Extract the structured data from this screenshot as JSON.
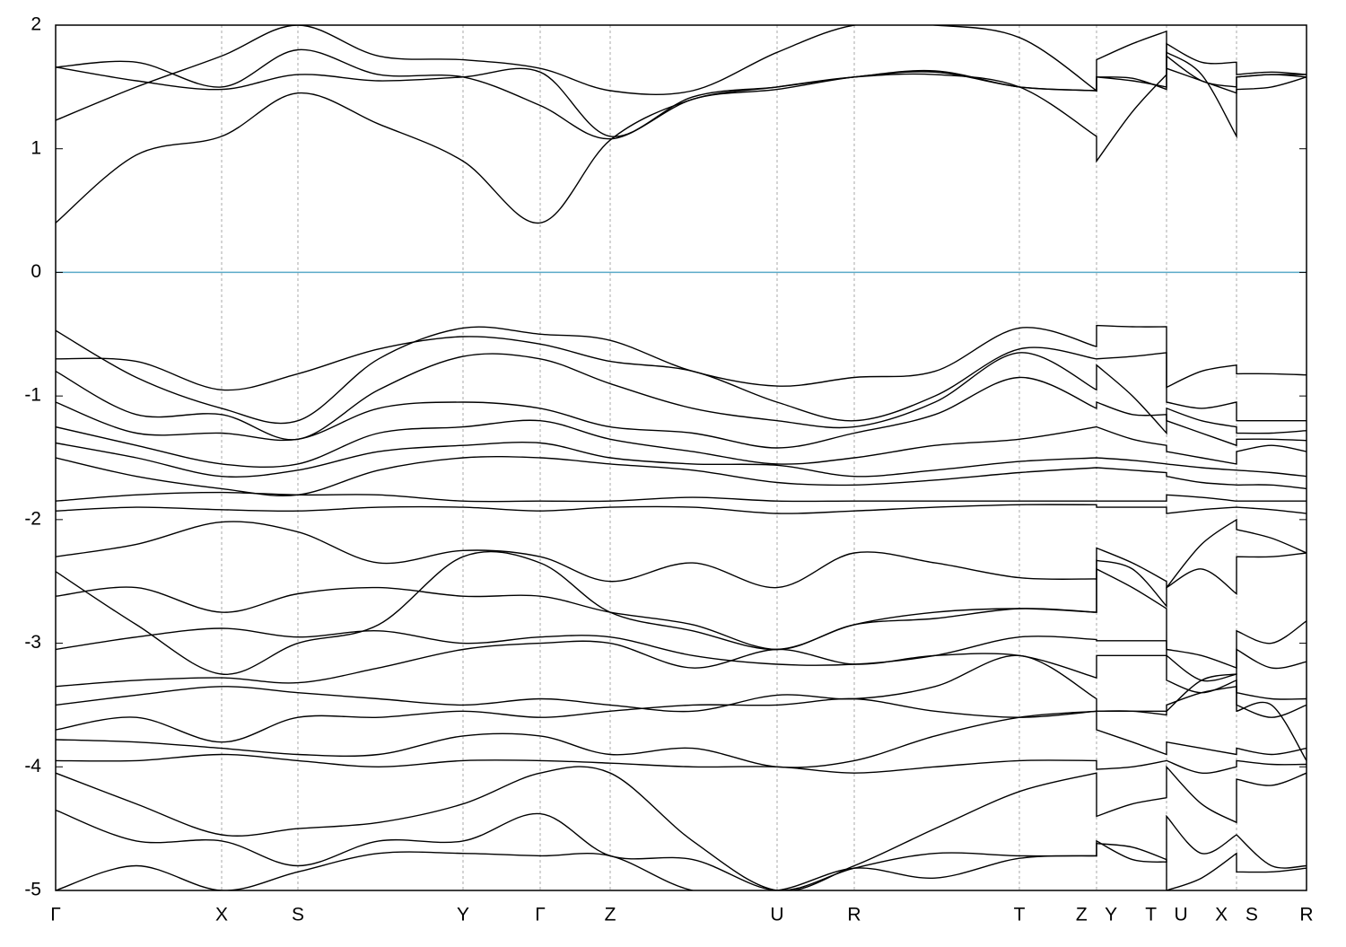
{
  "chart_data": {
    "type": "line",
    "x": [
      0,
      0.9,
      1.85,
      2.7,
      3.6,
      4.54,
      5.4,
      6.18,
      7.1,
      8.04,
      8.9,
      9.8,
      10.74,
      11.6,
      11.6,
      12.0,
      12.38,
      12.38,
      12.77,
      13.16,
      13.16,
      13.55,
      13.94
    ],
    "xlim": [
      0,
      13.94
    ],
    "xticks": [
      {
        "value": 0,
        "label": "Γ"
      },
      {
        "value": 1.85,
        "label": "X"
      },
      {
        "value": 2.7,
        "label": "S"
      },
      {
        "value": 4.54,
        "label": "Y"
      },
      {
        "value": 5.4,
        "label": "Γ"
      },
      {
        "value": 6.18,
        "label": "Z"
      },
      {
        "value": 8.04,
        "label": "U"
      },
      {
        "value": 8.9,
        "label": "R"
      },
      {
        "value": 10.74,
        "label": "T"
      },
      {
        "value": 11.6,
        "label": "Z Y"
      },
      {
        "value": 12.38,
        "label": "T U"
      },
      {
        "value": 13.16,
        "label": "X S"
      },
      {
        "value": 13.94,
        "label": "R"
      }
    ],
    "ylim": [
      -5,
      2
    ],
    "yticks": [
      -5,
      -4,
      -3,
      -2,
      -1,
      0,
      1,
      2
    ],
    "xgrid": true,
    "line_color": "#000000",
    "hline": {
      "value": 0,
      "color": "#5aaac8"
    },
    "series": [
      {
        "values": [
          0.4,
          0.95,
          1.1,
          1.45,
          1.2,
          0.9,
          0.4,
          1.07,
          1.4,
          1.5,
          1.58,
          1.6,
          1.5,
          1.1,
          0.9,
          1.3,
          1.6,
          1.78,
          1.6,
          1.1,
          1.48,
          1.5,
          1.58
        ]
      },
      {
        "values": [
          1.23,
          1.5,
          1.75,
          2.0,
          1.75,
          1.72,
          1.65,
          1.47,
          1.47,
          1.78,
          2.0,
          2.0,
          1.9,
          1.47,
          1.72,
          1.85,
          1.95,
          1.65,
          1.55,
          1.45,
          1.58,
          1.6,
          1.6
        ]
      },
      {
        "values": [
          1.66,
          1.55,
          1.48,
          1.6,
          1.55,
          1.58,
          1.62,
          1.1,
          1.42,
          1.5,
          1.58,
          1.63,
          1.5,
          1.47,
          1.58,
          1.57,
          1.48,
          1.85,
          1.7,
          1.7,
          1.6,
          1.62,
          1.6
        ]
      },
      {
        "values": [
          1.66,
          1.7,
          1.5,
          1.8,
          1.6,
          1.58,
          1.35,
          1.08,
          1.4,
          1.48,
          1.58,
          1.62,
          1.5,
          1.47,
          1.58,
          1.55,
          1.5,
          1.75,
          1.55,
          1.5,
          1.58,
          1.6,
          1.58
        ]
      },
      {
        "values": [
          -0.47,
          -0.85,
          -1.1,
          -1.2,
          -0.7,
          -0.45,
          -0.5,
          -0.55,
          -0.8,
          -0.92,
          -0.85,
          -0.8,
          -0.45,
          -0.6,
          -0.43,
          -0.44,
          -0.44,
          -0.93,
          -0.8,
          -0.75,
          -0.82,
          -0.82,
          -0.83
        ]
      },
      {
        "values": [
          -0.7,
          -0.72,
          -0.95,
          -0.82,
          -0.62,
          -0.52,
          -0.58,
          -0.72,
          -0.8,
          -1.05,
          -1.2,
          -1.0,
          -0.62,
          -0.7,
          -0.7,
          -0.68,
          -0.65,
          -1.05,
          -1.1,
          -1.05,
          -1.2,
          -1.2,
          -1.2
        ]
      },
      {
        "values": [
          -0.8,
          -1.15,
          -1.15,
          -1.35,
          -0.95,
          -0.68,
          -0.7,
          -0.9,
          -1.1,
          -1.2,
          -1.25,
          -1.05,
          -0.65,
          -0.95,
          -0.75,
          -1.0,
          -1.3,
          -1.1,
          -1.2,
          -1.25,
          -1.3,
          -1.3,
          -1.28
        ]
      },
      {
        "values": [
          -1.05,
          -1.3,
          -1.3,
          -1.35,
          -1.1,
          -1.05,
          -1.1,
          -1.25,
          -1.3,
          -1.42,
          -1.3,
          -1.15,
          -0.85,
          -1.1,
          -1.05,
          -1.15,
          -1.15,
          -1.2,
          -1.3,
          -1.4,
          -1.35,
          -1.35,
          -1.36
        ]
      },
      {
        "values": [
          -1.25,
          -1.4,
          -1.55,
          -1.55,
          -1.3,
          -1.25,
          -1.2,
          -1.35,
          -1.45,
          -1.55,
          -1.5,
          -1.4,
          -1.35,
          -1.25,
          -1.25,
          -1.35,
          -1.4,
          -1.45,
          -1.5,
          -1.55,
          -1.45,
          -1.4,
          -1.45
        ]
      },
      {
        "values": [
          -1.38,
          -1.5,
          -1.65,
          -1.6,
          -1.45,
          -1.4,
          -1.38,
          -1.5,
          -1.55,
          -1.56,
          -1.65,
          -1.6,
          -1.53,
          -1.5,
          -1.5,
          -1.52,
          -1.55,
          -1.55,
          -1.58,
          -1.6,
          -1.6,
          -1.62,
          -1.65
        ]
      },
      {
        "values": [
          -1.5,
          -1.65,
          -1.75,
          -1.8,
          -1.6,
          -1.5,
          -1.5,
          -1.55,
          -1.6,
          -1.7,
          -1.72,
          -1.68,
          -1.62,
          -1.58,
          -1.58,
          -1.6,
          -1.62,
          -1.65,
          -1.7,
          -1.72,
          -1.72,
          -1.72,
          -1.75
        ]
      },
      {
        "values": [
          -1.85,
          -1.8,
          -1.78,
          -1.8,
          -1.8,
          -1.85,
          -1.85,
          -1.85,
          -1.82,
          -1.85,
          -1.85,
          -1.85,
          -1.85,
          -1.85,
          -1.85,
          -1.85,
          -1.85,
          -1.8,
          -1.82,
          -1.85,
          -1.85,
          -1.85,
          -1.85
        ]
      },
      {
        "values": [
          -1.93,
          -1.9,
          -1.92,
          -1.93,
          -1.9,
          -1.9,
          -1.93,
          -1.9,
          -1.9,
          -1.95,
          -1.93,
          -1.9,
          -1.88,
          -1.88,
          -1.9,
          -1.9,
          -1.9,
          -1.95,
          -1.92,
          -1.9,
          -1.9,
          -1.92,
          -1.95
        ]
      },
      {
        "values": [
          -2.3,
          -2.2,
          -2.02,
          -2.1,
          -2.35,
          -2.25,
          -2.3,
          -2.5,
          -2.35,
          -2.55,
          -2.27,
          -2.35,
          -2.47,
          -2.48,
          -2.23,
          -2.35,
          -2.5,
          -2.55,
          -2.2,
          -2.0,
          -2.08,
          -2.15,
          -2.27
        ]
      },
      {
        "values": [
          -2.62,
          -2.55,
          -2.75,
          -2.6,
          -2.55,
          -2.62,
          -2.62,
          -2.75,
          -2.85,
          -3.05,
          -2.85,
          -2.8,
          -2.72,
          -2.75,
          -2.33,
          -2.4,
          -2.7,
          -2.55,
          -2.4,
          -2.6,
          -2.3,
          -2.3,
          -2.27
        ]
      },
      {
        "values": [
          -2.42,
          -2.85,
          -3.25,
          -3.0,
          -2.85,
          -2.3,
          -2.35,
          -2.75,
          -2.9,
          -3.05,
          -2.85,
          -2.75,
          -2.72,
          -2.75,
          -2.4,
          -2.55,
          -2.72,
          -3.05,
          -3.1,
          -3.2,
          -2.9,
          -3.0,
          -2.82
        ]
      },
      {
        "values": [
          -3.05,
          -2.95,
          -2.88,
          -2.95,
          -2.9,
          -3.0,
          -2.95,
          -2.95,
          -3.1,
          -3.17,
          -3.17,
          -3.1,
          -2.95,
          -2.97,
          -2.98,
          -2.98,
          -2.98,
          -3.1,
          -3.3,
          -3.25,
          -3.05,
          -3.2,
          -3.15
        ]
      },
      {
        "values": [
          -3.35,
          -3.3,
          -3.28,
          -3.32,
          -3.2,
          -3.05,
          -3.0,
          -3.0,
          -3.2,
          -3.05,
          -3.17,
          -3.1,
          -3.1,
          -3.28,
          -3.1,
          -3.1,
          -3.1,
          -3.3,
          -3.4,
          -3.3,
          -3.4,
          -3.45,
          -3.45
        ]
      },
      {
        "values": [
          -3.5,
          -3.42,
          -3.35,
          -3.4,
          -3.45,
          -3.5,
          -3.45,
          -3.5,
          -3.55,
          -3.42,
          -3.45,
          -3.35,
          -3.1,
          -3.45,
          -3.55,
          -3.55,
          -3.55,
          -3.5,
          -3.4,
          -3.35,
          -3.5,
          -3.6,
          -3.5
        ]
      },
      {
        "values": [
          -3.7,
          -3.6,
          -3.8,
          -3.6,
          -3.6,
          -3.55,
          -3.6,
          -3.55,
          -3.5,
          -3.5,
          -3.45,
          -3.55,
          -3.6,
          -3.55,
          -3.55,
          -3.55,
          -3.58,
          -3.55,
          -3.3,
          -3.25,
          -3.55,
          -3.5,
          -3.95
        ]
      },
      {
        "values": [
          -3.78,
          -3.8,
          -3.85,
          -3.9,
          -3.9,
          -3.75,
          -3.75,
          -3.9,
          -3.85,
          -4.0,
          -3.95,
          -3.75,
          -3.6,
          -3.55,
          -3.7,
          -3.8,
          -3.9,
          -3.8,
          -3.85,
          -3.9,
          -3.85,
          -3.9,
          -3.85
        ]
      },
      {
        "values": [
          -3.95,
          -3.95,
          -3.9,
          -3.95,
          -4.0,
          -3.95,
          -3.95,
          -3.97,
          -4.0,
          -4.0,
          -4.05,
          -4.0,
          -3.95,
          -3.95,
          -4.02,
          -4.0,
          -3.95,
          -3.95,
          -4.05,
          -4.0,
          -3.95,
          -3.98,
          -3.98
        ]
      },
      {
        "values": [
          -4.05,
          -4.3,
          -4.55,
          -4.5,
          -4.45,
          -4.3,
          -4.05,
          -4.05,
          -4.6,
          -5.0,
          -4.8,
          -4.5,
          -4.2,
          -4.05,
          -4.4,
          -4.3,
          -4.25,
          -4.0,
          -4.3,
          -4.45,
          -4.1,
          -4.15,
          -4.05
        ]
      },
      {
        "values": [
          -4.35,
          -4.6,
          -4.6,
          -4.8,
          -4.6,
          -4.6,
          -4.38,
          -4.72,
          -4.75,
          -5.0,
          -4.82,
          -4.7,
          -4.72,
          -4.72,
          -4.6,
          -4.75,
          -4.77,
          -4.4,
          -4.7,
          -4.55,
          -4.55,
          -4.8,
          -4.8
        ]
      },
      {
        "values": [
          -5.0,
          -4.8,
          -5.0,
          -4.85,
          -4.7,
          -4.7,
          -4.72,
          -4.72,
          -5.0,
          -5.0,
          -4.82,
          -4.9,
          -4.74,
          -4.72,
          -4.62,
          -4.65,
          -4.75,
          -5.0,
          -4.9,
          -4.7,
          -4.85,
          -4.85,
          -4.82
        ]
      }
    ]
  }
}
